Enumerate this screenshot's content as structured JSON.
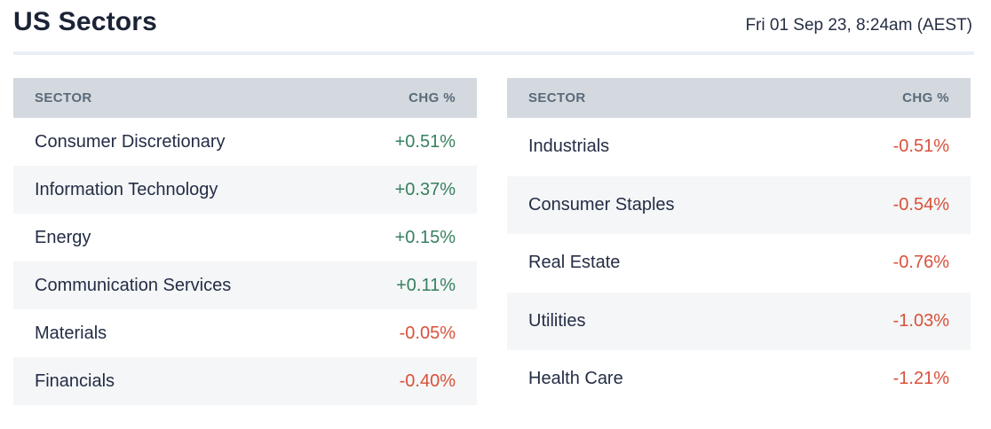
{
  "page": {
    "title": "US Sectors",
    "timestamp": "Fri 01 Sep 23, 8:24am (AEST)"
  },
  "colors": {
    "positive": "#37805f",
    "negative": "#d9503a",
    "header_bg": "#d3d9de",
    "header_text": "#5a6a7a",
    "row_alt_bg": "#f4f6f7",
    "title_text": "#1b2336",
    "divider": "#e9eff6"
  },
  "tables": [
    {
      "id": "left",
      "headers": {
        "sector": "SECTOR",
        "chg": "CHG %"
      },
      "rows": [
        {
          "sector": "Consumer Discretionary",
          "chg": "+0.51%"
        },
        {
          "sector": "Information Technology",
          "chg": "+0.37%"
        },
        {
          "sector": "Energy",
          "chg": "+0.15%"
        },
        {
          "sector": "Communication Services",
          "chg": "+0.11%"
        },
        {
          "sector": "Materials",
          "chg": "-0.05%"
        },
        {
          "sector": "Financials",
          "chg": "-0.40%"
        }
      ]
    },
    {
      "id": "right",
      "headers": {
        "sector": "SECTOR",
        "chg": "CHG %"
      },
      "rows": [
        {
          "sector": "Industrials",
          "chg": "-0.51%"
        },
        {
          "sector": "Consumer Staples",
          "chg": "-0.54%"
        },
        {
          "sector": "Real Estate",
          "chg": "-0.76%"
        },
        {
          "sector": "Utilities",
          "chg": "-1.03%"
        },
        {
          "sector": "Health Care",
          "chg": "-1.21%"
        }
      ]
    }
  ]
}
